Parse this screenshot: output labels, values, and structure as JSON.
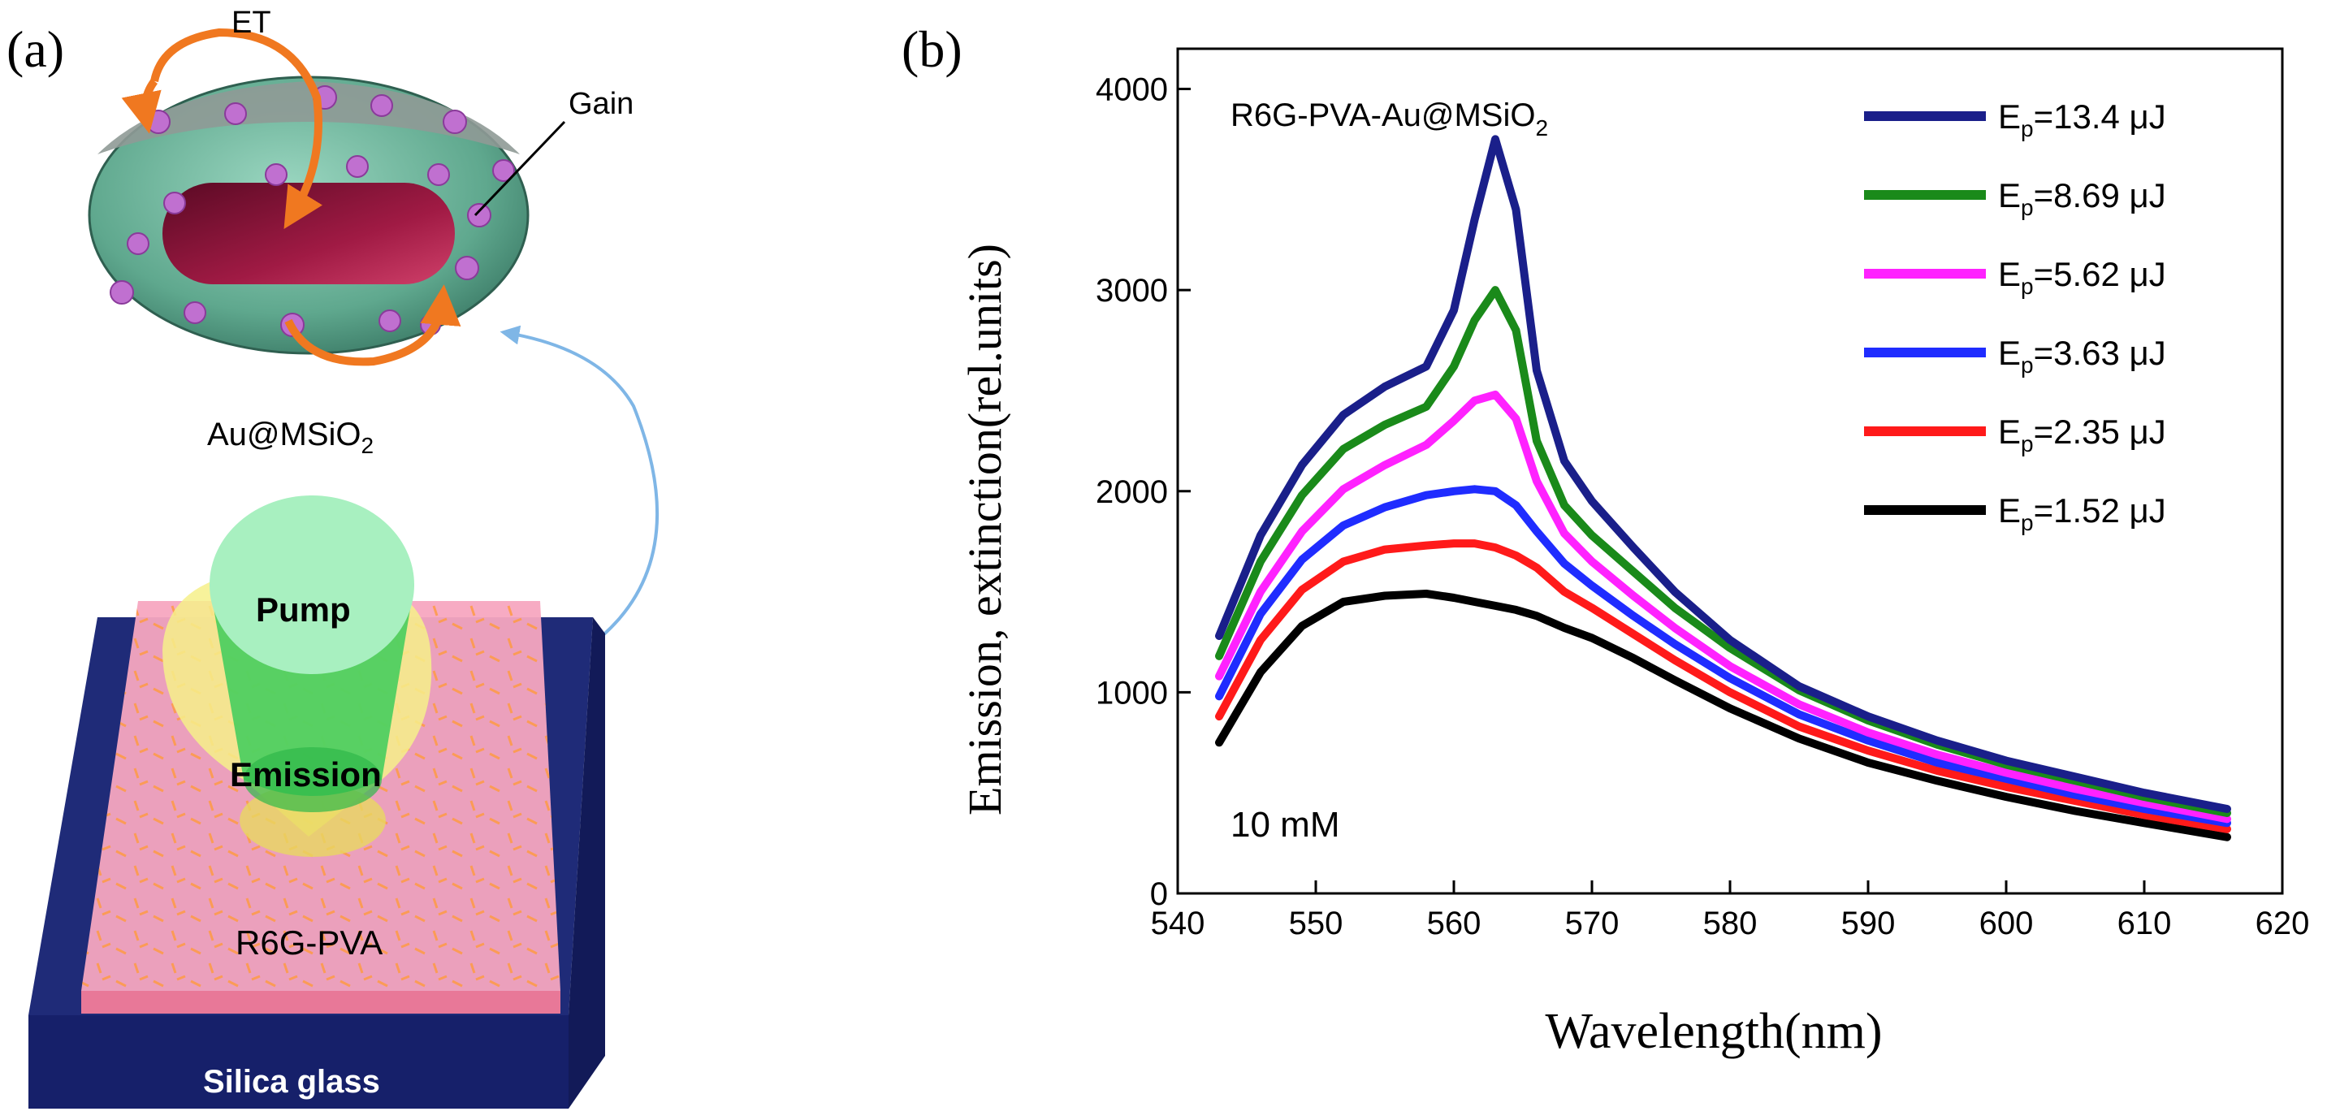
{
  "panel_a": {
    "label": "(a)",
    "et_label": "ET",
    "gain_label": "Gain",
    "particle_label": "Au@MSiO",
    "particle_label_sub": "2",
    "pump_label": "Pump",
    "emission_label": "Emission",
    "film_label": "R6G-PVA",
    "substrate_label": "Silica glass",
    "colors": {
      "shell": "#6fb8a0",
      "core": "#8c1238",
      "dots": "#c070d0",
      "arrow": "#f07820",
      "film": "#f7a6c0",
      "substrate": "#1f2b78",
      "pump": "#9be8b0",
      "emission_cone": "#f6f08a"
    }
  },
  "panel_b": {
    "label": "(b)",
    "inset_text": "10 mM"
  },
  "chart_data": {
    "type": "line",
    "title": "R6G-PVA-Au@MSiO",
    "title_sub": "2",
    "xlabel": "Wavelength(nm)",
    "ylabel": "Emission, extinction(rel.units)",
    "xlim": [
      540,
      620
    ],
    "ylim": [
      0,
      4200
    ],
    "xticks": [
      540,
      550,
      560,
      570,
      580,
      590,
      600,
      610,
      620
    ],
    "yticks": [
      0,
      1000,
      2000,
      3000,
      4000
    ],
    "legend_position": "top-right",
    "x": [
      543,
      546,
      549,
      552,
      555,
      558,
      560,
      561.5,
      563,
      564.5,
      566,
      568,
      570,
      573,
      576,
      580,
      585,
      590,
      595,
      600,
      605,
      610,
      616
    ],
    "series": [
      {
        "name": "E",
        "sub": "p",
        "suffix": "=13.4 μJ",
        "color": "#1a1f8a",
        "values": [
          1280,
          1780,
          2130,
          2380,
          2520,
          2620,
          2900,
          3350,
          3750,
          3400,
          2600,
          2150,
          1950,
          1720,
          1500,
          1260,
          1030,
          880,
          760,
          660,
          580,
          500,
          420
        ]
      },
      {
        "name": "E",
        "sub": "p",
        "suffix": "=8.69 μJ",
        "color": "#1a8a1a",
        "values": [
          1180,
          1650,
          1980,
          2210,
          2330,
          2420,
          2620,
          2850,
          3000,
          2800,
          2250,
          1930,
          1780,
          1600,
          1420,
          1220,
          1010,
          860,
          740,
          640,
          560,
          480,
          400
        ]
      },
      {
        "name": "E",
        "sub": "p",
        "suffix": "=5.62 μJ",
        "color": "#ff22ff",
        "values": [
          1080,
          1500,
          1800,
          2010,
          2130,
          2230,
          2350,
          2450,
          2480,
          2360,
          2050,
          1790,
          1650,
          1480,
          1320,
          1130,
          940,
          800,
          690,
          600,
          520,
          450,
          370
        ]
      },
      {
        "name": "E",
        "sub": "p",
        "suffix": "=3.63 μJ",
        "color": "#1f2cff",
        "values": [
          980,
          1390,
          1660,
          1830,
          1920,
          1980,
          2000,
          2010,
          2000,
          1930,
          1800,
          1640,
          1530,
          1380,
          1240,
          1070,
          890,
          760,
          650,
          570,
          490,
          420,
          350
        ]
      },
      {
        "name": "E",
        "sub": "p",
        "suffix": "=2.35 μJ",
        "color": "#ff1a1a",
        "values": [
          880,
          1260,
          1510,
          1650,
          1710,
          1730,
          1740,
          1740,
          1720,
          1680,
          1620,
          1500,
          1420,
          1290,
          1160,
          1000,
          830,
          710,
          610,
          530,
          460,
          390,
          320
        ]
      },
      {
        "name": "E",
        "sub": "p",
        "suffix": "=1.52 μJ",
        "color": "#000000",
        "values": [
          750,
          1100,
          1330,
          1450,
          1480,
          1490,
          1470,
          1450,
          1430,
          1410,
          1380,
          1320,
          1270,
          1170,
          1060,
          920,
          770,
          650,
          560,
          480,
          410,
          350,
          280
        ]
      }
    ]
  }
}
